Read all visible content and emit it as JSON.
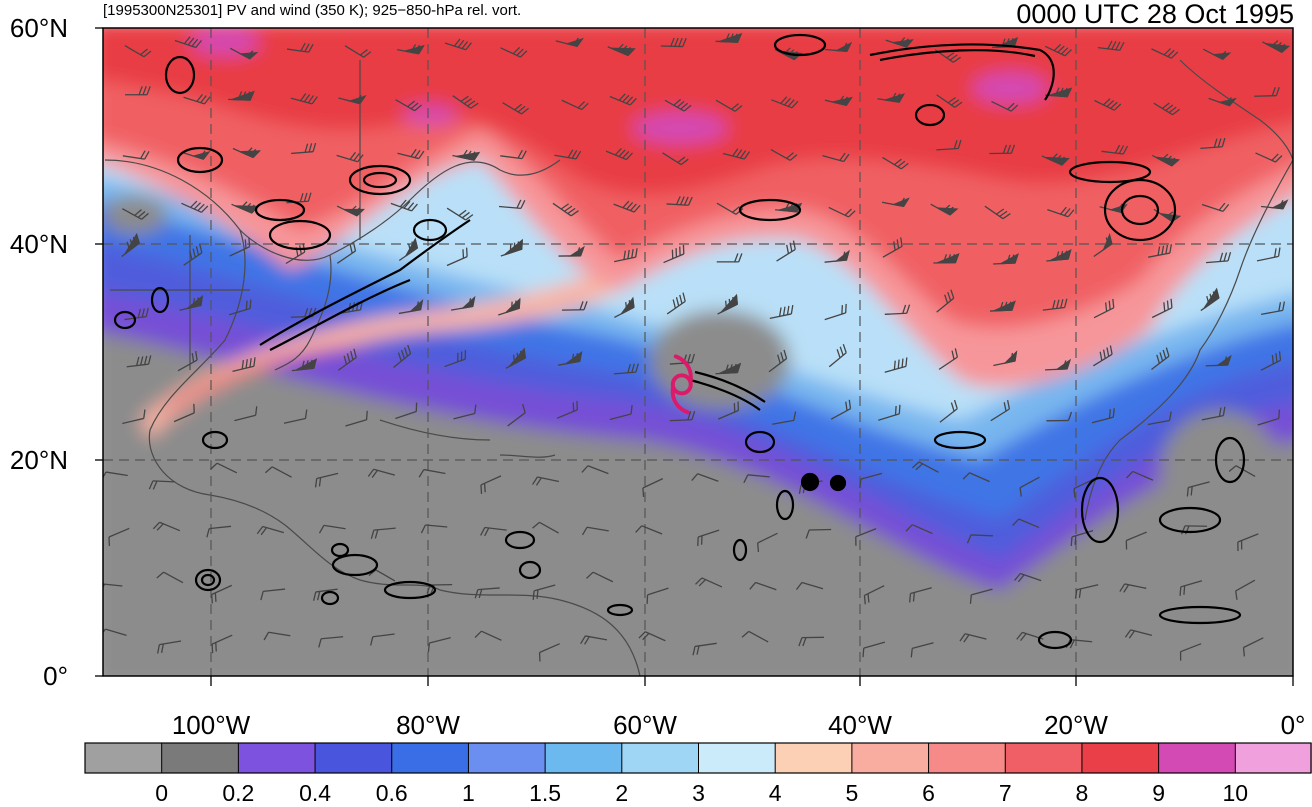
{
  "header": {
    "description": "[1995300N25301] PV and wind (350 K); 925−850-hPa rel. vort.",
    "timestamp": "0000 UTC 28 Oct 1995"
  },
  "map": {
    "projection": "cylindrical equidistant",
    "lon_range": [
      -110,
      0
    ],
    "lat_range": [
      0,
      60
    ],
    "lat_labels": [
      "0°",
      "20°N",
      "40°N",
      "60°N"
    ],
    "lon_labels": [
      "100°W",
      "80°W",
      "60°W",
      "40°W",
      "20°W",
      "0°"
    ],
    "storm_symbol": {
      "name": "tropical-cyclone-icon",
      "lon": -56.5,
      "lat": 27,
      "color": "#dd1a6a"
    }
  },
  "colorbar": {
    "levels": [
      "0",
      "0.2",
      "0.4",
      "0.6",
      "1",
      "1.5",
      "2",
      "3",
      "4",
      "5",
      "6",
      "7",
      "8",
      "9",
      "10"
    ],
    "colors": [
      "#a0a0a0",
      "#7a7a7a",
      "#7d52de",
      "#4a55de",
      "#3a6ee6",
      "#6b8ff0",
      "#6bb9ef",
      "#9fd6f6",
      "#cbeafa",
      "#fbd0b4",
      "#f9aca0",
      "#f58a88",
      "#f05e66",
      "#ea3f48",
      "#d44ab4",
      "#f0a0dc"
    ]
  }
}
